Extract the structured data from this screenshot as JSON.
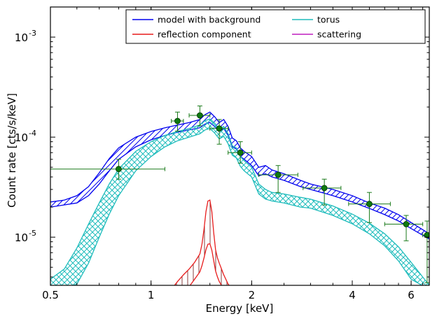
{
  "chart_data": {
    "type": "line",
    "xlabel": "Energy [keV]",
    "ylabel": "Count rate [cts/s/keV]",
    "xscale": "log",
    "yscale": "log",
    "xlim": [
      0.5,
      6.8
    ],
    "ylim": [
      3.3e-06,
      0.002
    ],
    "x_ticks": [
      {
        "value": 0.5,
        "label": "0.5"
      },
      {
        "value": 1,
        "label": "1"
      },
      {
        "value": 2,
        "label": "2"
      },
      {
        "value": 4,
        "label": "4"
      },
      {
        "value": 6,
        "label": "6"
      }
    ],
    "y_ticks": [
      {
        "value": 1e-05,
        "base": "10",
        "exp": "-5"
      },
      {
        "value": 0.0001,
        "base": "10",
        "exp": "-4"
      },
      {
        "value": 0.001,
        "base": "10",
        "exp": "-3"
      }
    ],
    "grid": false,
    "legend_position": "top-right",
    "legend": [
      {
        "label": "model with background",
        "color": "#0000ee"
      },
      {
        "label": "torus",
        "color": "#1fbcbc"
      },
      {
        "label": "reflection component",
        "color": "#e81c1c"
      },
      {
        "label": "scattering",
        "color": "#bf1fbf"
      }
    ],
    "series": [
      {
        "name": "model with background",
        "color": "#0000ee",
        "x": [
          0.5,
          0.55,
          0.6,
          0.65,
          0.7,
          0.75,
          0.8,
          0.9,
          1.0,
          1.1,
          1.2,
          1.3,
          1.4,
          1.45,
          1.5,
          1.55,
          1.6,
          1.65,
          1.7,
          1.75,
          1.8,
          1.85,
          1.9,
          2.0,
          2.1,
          2.2,
          2.3,
          2.5,
          2.8,
          3.0,
          3.5,
          4.0,
          4.5,
          5.0,
          5.5,
          6.0,
          6.8
        ],
        "upper": [
          2.25e-05,
          2.35e-05,
          2.6e-05,
          3.2e-05,
          4.4e-05,
          6.1e-05,
          7.8e-05,
          0.0001,
          0.000114,
          0.000124,
          0.000132,
          0.00014,
          0.00015,
          0.000168,
          0.000178,
          0.00016,
          0.00014,
          0.00015,
          0.000128,
          9.8e-05,
          9.2e-05,
          7.8e-05,
          7.2e-05,
          6.4e-05,
          5e-05,
          5.2e-05,
          4.7e-05,
          4.3e-05,
          3.7e-05,
          3.4e-05,
          3e-05,
          2.6e-05,
          2.2e-05,
          1.95e-05,
          1.68e-05,
          1.4e-05,
          1.08e-05
        ],
        "lower": [
          2e-05,
          2.1e-05,
          2.2e-05,
          2.6e-05,
          3.4e-05,
          4.6e-05,
          6e-05,
          8e-05,
          9.4e-05,
          0.000104,
          0.000112,
          0.000118,
          0.000124,
          0.000135,
          0.00014,
          0.000128,
          0.000114,
          0.000122,
          0.000104,
          8e-05,
          7.6e-05,
          6.4e-05,
          6e-05,
          5.2e-05,
          4.1e-05,
          4.3e-05,
          4e-05,
          3.7e-05,
          3.2e-05,
          3e-05,
          2.6e-05,
          2.25e-05,
          1.94e-05,
          1.68e-05,
          1.45e-05,
          1.22e-05,
          9.6e-06
        ]
      },
      {
        "name": "torus",
        "color": "#1fbcbc",
        "x": [
          0.5,
          0.55,
          0.6,
          0.65,
          0.7,
          0.75,
          0.8,
          0.9,
          1.0,
          1.1,
          1.2,
          1.3,
          1.4,
          1.45,
          1.5,
          1.55,
          1.6,
          1.65,
          1.7,
          1.75,
          1.8,
          1.85,
          1.9,
          2.0,
          2.1,
          2.2,
          2.3,
          2.5,
          2.8,
          3.0,
          3.5,
          4.0,
          4.5,
          5.0,
          5.5,
          6.0,
          6.8
        ],
        "upper": [
          3.8e-06,
          4.8e-06,
          7.8e-06,
          1.35e-05,
          2.2e-05,
          3.4e-05,
          4.8e-05,
          7.2e-05,
          9e-05,
          0.000104,
          0.000114,
          0.000122,
          0.000132,
          0.000146,
          0.000152,
          0.000138,
          0.00012,
          0.000128,
          0.000108,
          8.2e-05,
          7.8e-05,
          6.4e-05,
          5.8e-05,
          5e-05,
          3.4e-05,
          3e-05,
          2.8e-05,
          2.7e-05,
          2.5e-05,
          2.4e-05,
          2.05e-05,
          1.7e-05,
          1.38e-05,
          1.08e-05,
          8e-06,
          5.6e-06,
          3.3e-06
        ],
        "lower": [
          3e-06,
          3e-06,
          3.4e-06,
          5.5e-06,
          1e-05,
          1.7e-05,
          2.6e-05,
          4.6e-05,
          6.4e-05,
          8e-05,
          9.2e-05,
          0.0001,
          0.000108,
          0.000118,
          0.000122,
          0.00011,
          9.6e-05,
          0.000102,
          8.6e-05,
          6.6e-05,
          6.2e-05,
          5.1e-05,
          4.6e-05,
          4e-05,
          2.7e-05,
          2.4e-05,
          2.3e-05,
          2.2e-05,
          2e-05,
          1.95e-05,
          1.65e-05,
          1.36e-05,
          1.08e-05,
          8.2e-06,
          5.8e-06,
          3.8e-06,
          3e-06
        ]
      },
      {
        "name": "reflection component",
        "color": "#e81c1c",
        "x": [
          1.15,
          1.2,
          1.25,
          1.3,
          1.35,
          1.4,
          1.42,
          1.44,
          1.46,
          1.48,
          1.5,
          1.52,
          1.54,
          1.56,
          1.58,
          1.6,
          1.65,
          1.7,
          1.75
        ],
        "upper": [
          3e-06,
          3.6e-06,
          4.2e-06,
          4.8e-06,
          5.6e-06,
          6.8e-06,
          8.5e-06,
          1.2e-05,
          1.8e-05,
          2.3e-05,
          2.35e-05,
          1.8e-05,
          1.1e-05,
          7.5e-06,
          6.2e-06,
          5.5e-06,
          4.2e-06,
          3.4e-06,
          3e-06
        ],
        "lower": [
          3e-06,
          3e-06,
          3e-06,
          3.2e-06,
          3.8e-06,
          4.5e-06,
          5.2e-06,
          6.2e-06,
          7.5e-06,
          8.5e-06,
          8.6e-06,
          7.4e-06,
          5.8e-06,
          4.6e-06,
          4e-06,
          3.6e-06,
          3e-06,
          3e-06,
          3e-06
        ]
      }
    ],
    "data_points": [
      {
        "x": 0.8,
        "y": 4.8e-05,
        "xerr": [
          0.5,
          1.1
        ],
        "yerr": [
          3.8e-05,
          6e-05
        ]
      },
      {
        "x": 1.2,
        "y": 0.000145,
        "xerr": [
          1.15,
          1.25
        ],
        "yerr": [
          0.000115,
          0.000178
        ]
      },
      {
        "x": 1.4,
        "y": 0.000165,
        "xerr": [
          1.3,
          1.5
        ],
        "yerr": [
          0.00013,
          0.000205
        ]
      },
      {
        "x": 1.6,
        "y": 0.000122,
        "xerr": [
          1.5,
          1.7
        ],
        "yerr": [
          8.5e-05,
          0.00015
        ]
      },
      {
        "x": 1.85,
        "y": 7e-05,
        "xerr": [
          1.7,
          2.0
        ],
        "yerr": [
          5.5e-05,
          9e-05
        ]
      },
      {
        "x": 2.4,
        "y": 4.2e-05,
        "xerr": [
          2.1,
          2.75
        ],
        "yerr": [
          2.8e-05,
          5.2e-05
        ]
      },
      {
        "x": 3.3,
        "y": 3.1e-05,
        "xerr": [
          2.85,
          3.7
        ],
        "yerr": [
          2.1e-05,
          3.8e-05
        ]
      },
      {
        "x": 4.5,
        "y": 2.15e-05,
        "xerr": [
          3.9,
          5.2
        ],
        "yerr": [
          1.4e-05,
          2.8e-05
        ]
      },
      {
        "x": 5.8,
        "y": 1.35e-05,
        "xerr": [
          5.0,
          6.5
        ],
        "yerr": [
          9.2e-06,
          1.65e-05
        ]
      },
      {
        "x": 6.7,
        "y": 1.05e-05,
        "xerr": [
          6.5,
          6.8
        ],
        "yerr": [
          3.5e-06,
          1.45e-05
        ]
      }
    ]
  }
}
